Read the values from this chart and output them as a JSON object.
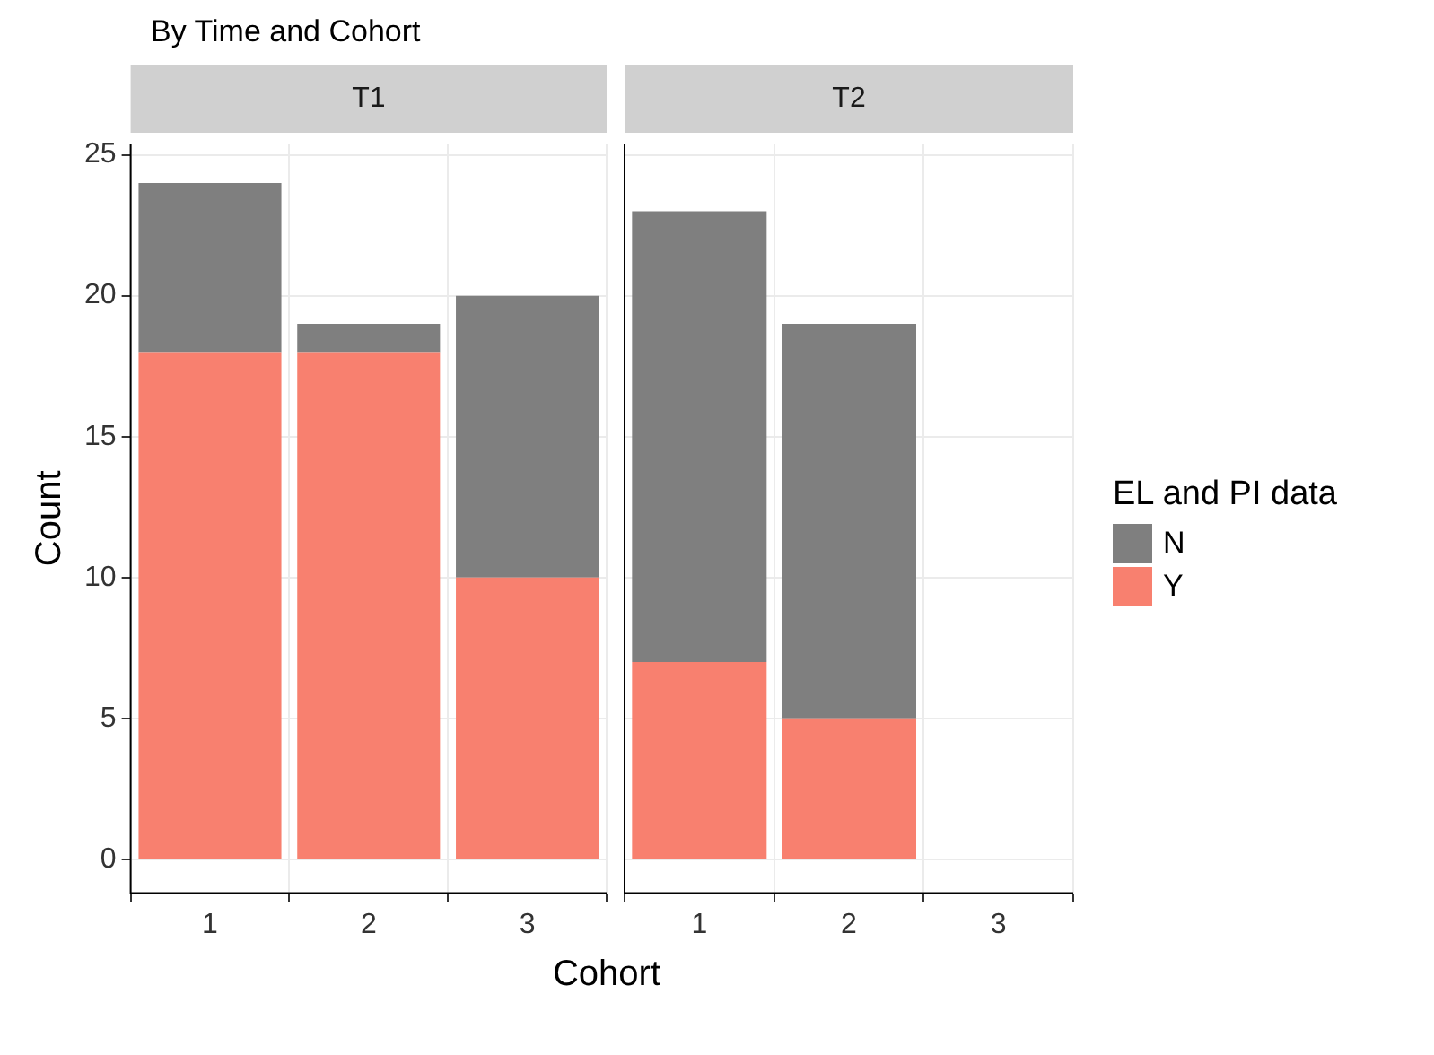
{
  "chart_data": [
    {
      "type": "bar",
      "title": "By Time and Cohort",
      "subtitle": "T1",
      "xlabel": "Cohort",
      "ylabel": "Count",
      "categories": [
        "1",
        "2",
        "3"
      ],
      "stacked": true,
      "ylim": [
        -1.2,
        25.4
      ],
      "yticks": [
        0,
        5,
        10,
        15,
        20,
        25
      ],
      "grid": true,
      "legend": false,
      "series": [
        {
          "color": "#f8806f",
          "values": [
            18,
            18,
            10
          ]
        },
        {
          "color": "#7f7f7f",
          "values": [
            6,
            1,
            10
          ]
        }
      ]
    },
    {
      "type": "bar",
      "subtitle": "T2",
      "categories": [
        "1",
        "2",
        "3"
      ],
      "stacked": true,
      "ylim": [
        -1.2,
        25.4
      ],
      "yticks": [
        0,
        5,
        10,
        15,
        20,
        25
      ],
      "grid": true,
      "tick_labels": "x",
      "legend": "right",
      "legend_title": "EL and PI data",
      "series": [
        {
          "name": "Y",
          "color": "#f8806f",
          "values": [
            7,
            5,
            null
          ]
        },
        {
          "name": "N",
          "color": "#7f7f7f",
          "values": [
            16,
            14,
            null
          ]
        }
      ]
    }
  ]
}
